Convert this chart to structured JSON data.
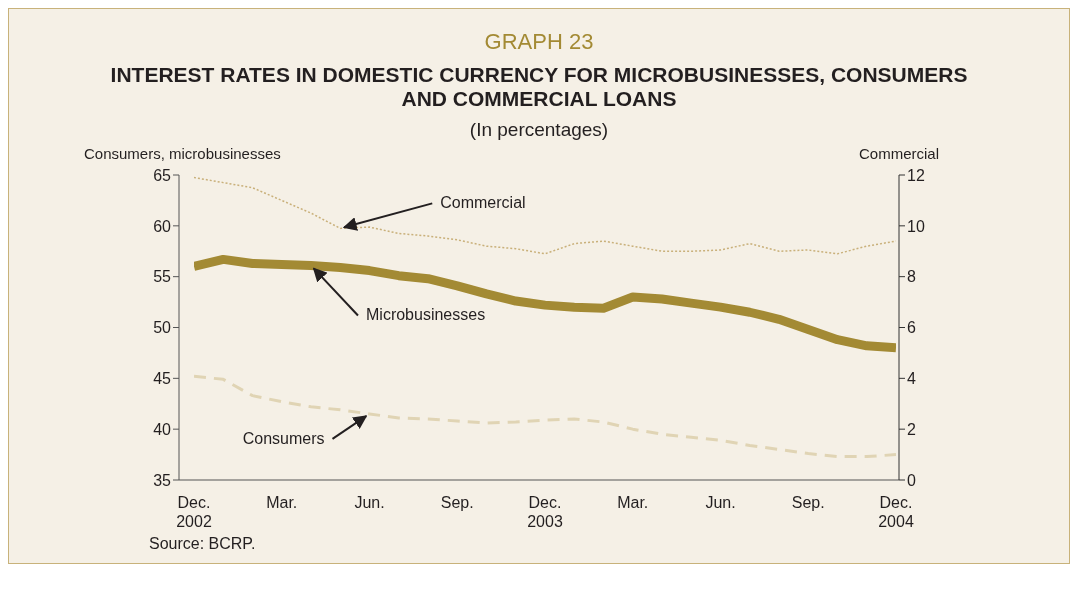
{
  "chart_data": {
    "type": "line",
    "title": "INTEREST RATES IN DOMESTIC CURRENCY FOR MICROBUSINESSES, CONSUMERS AND COMMERCIAL LOANS",
    "subtitle": "(In percentages)",
    "ylabel": "Consumers, microbusinesses",
    "y2label": "Commercial",
    "categories": [
      "Dec. 2002",
      null,
      null,
      "Mar.",
      null,
      null,
      "Jun.",
      null,
      null,
      "Sep.",
      null,
      null,
      "Dec. 2003",
      null,
      null,
      "Mar.",
      null,
      null,
      "Jun.",
      null,
      null,
      "Sep.",
      null,
      null,
      "Dec. 2004"
    ],
    "series": [
      {
        "name": "Commercial",
        "color": "#c9b07a",
        "axis": "y2",
        "line_style": "dotted",
        "values": [
          11.9,
          11.7,
          11.5,
          11.0,
          10.5,
          9.9,
          9.95,
          9.7,
          9.6,
          9.45,
          9.2,
          9.1,
          8.9,
          9.3,
          9.4,
          9.2,
          9.0,
          9.0,
          9.05,
          9.3,
          9.0,
          9.05,
          8.9,
          9.2,
          9.4
        ]
      },
      {
        "name": "Microbusinesses",
        "color": "#a38a34",
        "line_style": "solid",
        "values": [
          56.0,
          56.7,
          56.3,
          56.2,
          56.1,
          55.9,
          55.6,
          55.1,
          54.8,
          54.1,
          53.3,
          52.6,
          52.2,
          52.0,
          51.9,
          53.0,
          52.8,
          52.4,
          52.0,
          51.5,
          50.8,
          49.8,
          48.8,
          48.2,
          48.0
        ]
      },
      {
        "name": "Consumers",
        "color": "#e0d4b4",
        "line_style": "dashed",
        "values": [
          45.2,
          44.9,
          43.3,
          42.7,
          42.2,
          41.9,
          41.5,
          41.1,
          41.0,
          40.8,
          40.6,
          40.7,
          40.9,
          41.0,
          40.7,
          40.0,
          39.5,
          39.2,
          38.9,
          38.4,
          38.0,
          37.6,
          37.3,
          37.3,
          37.5
        ]
      }
    ],
    "ylim": [
      35,
      65
    ],
    "yticks": [
      35,
      40,
      45,
      50,
      55,
      60,
      65
    ],
    "y2lim": [
      0,
      12
    ],
    "y2ticks": [
      0,
      2,
      4,
      6,
      8,
      10,
      12
    ],
    "annotations": [
      "GRAPH  23",
      "Source: BCRP."
    ]
  }
}
